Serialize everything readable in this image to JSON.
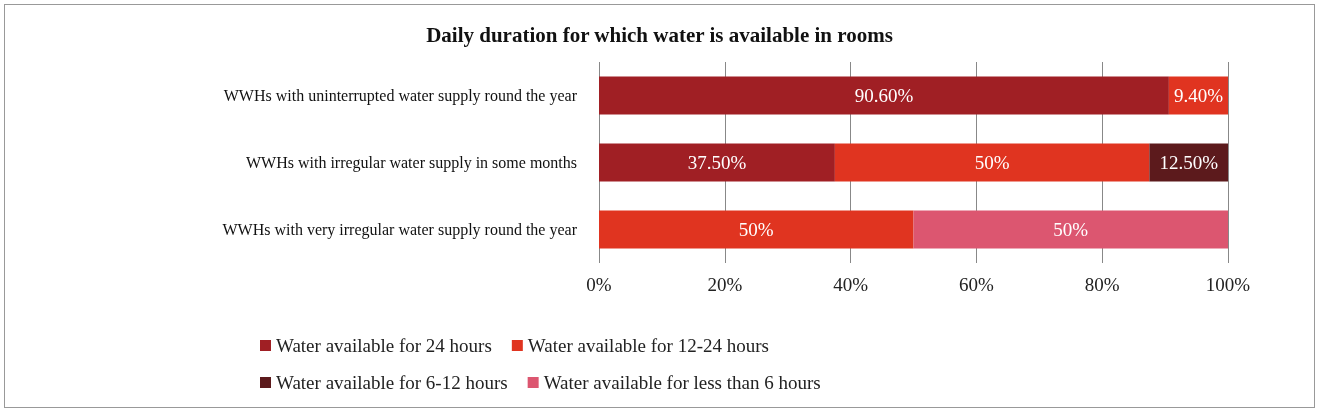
{
  "chart_data": {
    "type": "bar",
    "orientation": "horizontal",
    "stacked": true,
    "title": "Daily duration for which water is available in rooms",
    "categories": [
      "WWHs with uninterrupted water supply round the year",
      "WWHs with irregular water supply in some months",
      "WWHs with very irregular water supply round the year"
    ],
    "series": [
      {
        "name": "Water available for 24 hours",
        "color": "#a01f24",
        "values": [
          90.6,
          37.5,
          null
        ],
        "value_labels": [
          "90.60%",
          "37.50%",
          null
        ]
      },
      {
        "name": "Water available for 12-24 hours",
        "color": "#e03420",
        "values": [
          9.4,
          50,
          50
        ],
        "value_labels": [
          "9.40%",
          "50%",
          "50%"
        ]
      },
      {
        "name": "Water available for 6-12 hours",
        "color": "#5c1a1c",
        "values": [
          null,
          12.5,
          null
        ],
        "value_labels": [
          null,
          "12.50%",
          null
        ]
      },
      {
        "name": "Water available for less than 6 hours",
        "color": "#dc5670",
        "values": [
          null,
          null,
          50
        ],
        "value_labels": [
          null,
          null,
          "50%"
        ]
      }
    ],
    "xlim": [
      0,
      100
    ],
    "xticks": [
      {
        "value": 0,
        "label": "0%"
      },
      {
        "value": 20,
        "label": "20%"
      },
      {
        "value": 40,
        "label": "40%"
      },
      {
        "value": 60,
        "label": "60%"
      },
      {
        "value": 80,
        "label": "80%"
      },
      {
        "value": 100,
        "label": "100%"
      }
    ],
    "grid": "x",
    "legend": "bottom"
  }
}
